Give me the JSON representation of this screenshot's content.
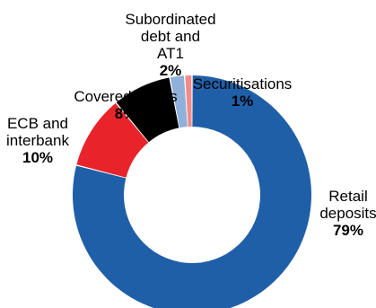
{
  "chart_data": {
    "type": "pie",
    "title": "",
    "categories": [
      "Retail deposits",
      "ECB and interbank",
      "Covered bonds",
      "Subordinated debt and AT1",
      "Securitisations"
    ],
    "values": [
      79,
      10,
      8,
      2,
      1
    ],
    "labels": [
      {
        "name_lines": [
          "Retail",
          "deposits"
        ],
        "pct": "79%"
      },
      {
        "name_lines": [
          "ECB and",
          "interbank"
        ],
        "pct": "10%"
      },
      {
        "name_lines": [
          "Covered bonds"
        ],
        "pct": "8%"
      },
      {
        "name_lines": [
          "Subordinated",
          "debt and",
          "AT1"
        ],
        "pct": "2%"
      },
      {
        "name_lines": [
          "Securitisations"
        ],
        "pct": "1%"
      }
    ],
    "colors": [
      "#1f5fa8",
      "#e8242a",
      "#000000",
      "#8fb0d8",
      "#f28b8b"
    ],
    "legend": "none",
    "donut": true
  }
}
